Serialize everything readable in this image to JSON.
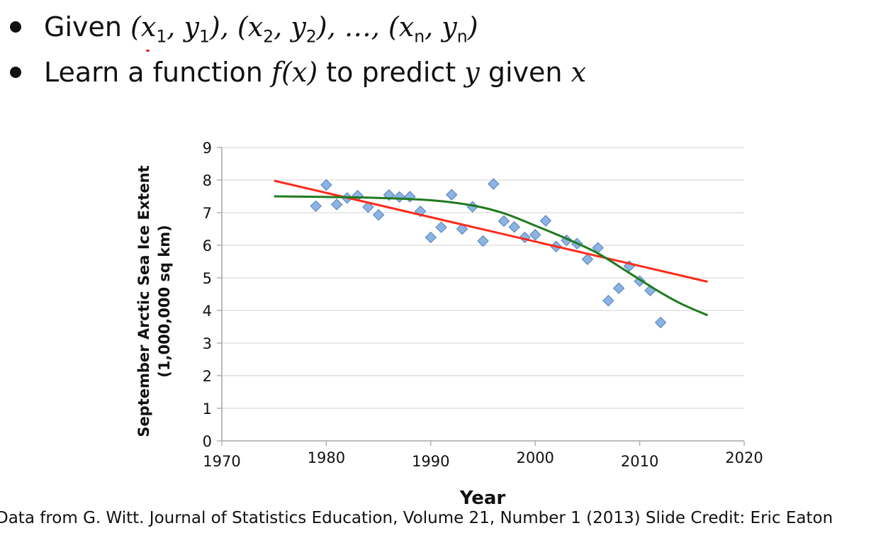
{
  "slide": {
    "bullets": [
      {
        "id": "given",
        "parts": [
          {
            "t": "Given ",
            "m": false
          },
          {
            "t": "(x",
            "m": true
          },
          {
            "sub": "1"
          },
          {
            "t": ", y",
            "m": true
          },
          {
            "sub": "1"
          },
          {
            "t": "), (x",
            "m": true
          },
          {
            "sub": "2"
          },
          {
            "t": ", y",
            "m": true
          },
          {
            "sub": "2"
          },
          {
            "t": "), …, (x",
            "m": true
          },
          {
            "sub": "n"
          },
          {
            "t": ", y",
            "m": true
          },
          {
            "sub": "n"
          },
          {
            "t": ")",
            "m": true
          }
        ]
      },
      {
        "id": "learn",
        "parts": [
          {
            "t": "Learn a function ",
            "m": false
          },
          {
            "t": "f",
            "m": true
          },
          {
            "t": "(",
            "m": "up"
          },
          {
            "t": "x",
            "m": true
          },
          {
            "t": ")",
            "m": "up"
          },
          {
            "t": " to predict ",
            "m": false
          },
          {
            "t": "y",
            "m": true
          },
          {
            "t": " given ",
            "m": false
          },
          {
            "t": "x",
            "m": true
          }
        ]
      }
    ],
    "footer": "Data from G. Witt. Journal of Statistics Education, Volume 21, Number 1 (2013) Slide Credit: Eric Eaton"
  },
  "chart_data": {
    "type": "scatter",
    "xlabel": "Year",
    "ylabel_lines": [
      "September Arctic Sea Ice Extent",
      "(1,000,000 sq km)"
    ],
    "xlim": [
      1970,
      2020
    ],
    "ylim": [
      0,
      9
    ],
    "xticks": [
      1970,
      1980,
      1990,
      2000,
      2010,
      2020
    ],
    "yticks": [
      0,
      1,
      2,
      3,
      4,
      5,
      6,
      7,
      8,
      9
    ],
    "grid": "horizontal",
    "colors": {
      "points": "#8db3e2",
      "point_edge": "#4f81bd",
      "linear_fit": "#ff2a1a",
      "curve_fit": "#1f7a1f",
      "grid": "#d9d9d9",
      "axis": "#a6a6a6"
    },
    "points": [
      {
        "x": 1979,
        "y": 7.2
      },
      {
        "x": 1980,
        "y": 7.85
      },
      {
        "x": 1981,
        "y": 7.25
      },
      {
        "x": 1982,
        "y": 7.45
      },
      {
        "x": 1983,
        "y": 7.52
      },
      {
        "x": 1984,
        "y": 7.17
      },
      {
        "x": 1985,
        "y": 6.93
      },
      {
        "x": 1986,
        "y": 7.54
      },
      {
        "x": 1987,
        "y": 7.48
      },
      {
        "x": 1988,
        "y": 7.49
      },
      {
        "x": 1989,
        "y": 7.04
      },
      {
        "x": 1990,
        "y": 6.24
      },
      {
        "x": 1991,
        "y": 6.55
      },
      {
        "x": 1992,
        "y": 7.55
      },
      {
        "x": 1993,
        "y": 6.5
      },
      {
        "x": 1994,
        "y": 7.18
      },
      {
        "x": 1995,
        "y": 6.13
      },
      {
        "x": 1996,
        "y": 7.88
      },
      {
        "x": 1997,
        "y": 6.74
      },
      {
        "x": 1998,
        "y": 6.56
      },
      {
        "x": 1999,
        "y": 6.24
      },
      {
        "x": 2000,
        "y": 6.32
      },
      {
        "x": 2001,
        "y": 6.75
      },
      {
        "x": 2002,
        "y": 5.96
      },
      {
        "x": 2003,
        "y": 6.15
      },
      {
        "x": 2004,
        "y": 6.05
      },
      {
        "x": 2005,
        "y": 5.57
      },
      {
        "x": 2006,
        "y": 5.92
      },
      {
        "x": 2007,
        "y": 4.3
      },
      {
        "x": 2008,
        "y": 4.68
      },
      {
        "x": 2009,
        "y": 5.36
      },
      {
        "x": 2010,
        "y": 4.9
      },
      {
        "x": 2011,
        "y": 4.61
      },
      {
        "x": 2012,
        "y": 3.63
      }
    ],
    "series": [
      {
        "kind": "linear-fit",
        "x": [
          1975,
          2016.5
        ],
        "y": [
          7.98,
          4.88
        ]
      },
      {
        "kind": "curve-fit",
        "x": [
          1975,
          1980,
          1985,
          1990,
          1994,
          1997,
          2000,
          2003,
          2006,
          2009,
          2012,
          2014,
          2016.5
        ],
        "y": [
          7.5,
          7.48,
          7.45,
          7.38,
          7.22,
          6.98,
          6.6,
          6.2,
          5.75,
          5.15,
          4.55,
          4.2,
          3.85
        ]
      }
    ]
  }
}
